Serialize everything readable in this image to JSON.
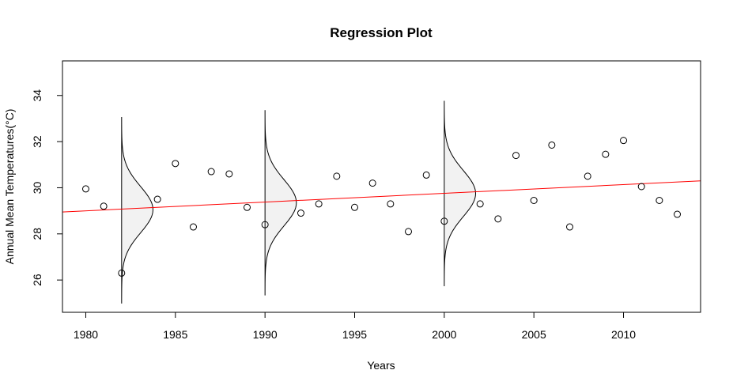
{
  "chart_data": {
    "type": "scatter",
    "title": "Regression Plot",
    "xlabel": "Years",
    "ylabel": "Annual Mean Temperatures(°C)",
    "xlim": [
      1978.7,
      2014.3
    ],
    "ylim": [
      24.6,
      35.5
    ],
    "x_ticks": [
      1980,
      1985,
      1990,
      1995,
      2000,
      2005,
      2010
    ],
    "y_ticks": [
      26,
      28,
      30,
      32,
      34
    ],
    "grid": false,
    "legend": "none",
    "points": [
      {
        "x": 1980,
        "y": 29.95
      },
      {
        "x": 1981,
        "y": 29.2
      },
      {
        "x": 1982,
        "y": 26.3
      },
      {
        "x": 1984,
        "y": 29.5
      },
      {
        "x": 1985,
        "y": 31.05
      },
      {
        "x": 1986,
        "y": 28.3
      },
      {
        "x": 1987,
        "y": 30.7
      },
      {
        "x": 1988,
        "y": 30.6
      },
      {
        "x": 1989,
        "y": 29.15
      },
      {
        "x": 1990,
        "y": 28.4
      },
      {
        "x": 1992,
        "y": 28.9
      },
      {
        "x": 1993,
        "y": 29.3
      },
      {
        "x": 1994,
        "y": 30.5
      },
      {
        "x": 1995,
        "y": 29.15
      },
      {
        "x": 1996,
        "y": 30.2
      },
      {
        "x": 1997,
        "y": 29.3
      },
      {
        "x": 1998,
        "y": 28.1
      },
      {
        "x": 1999,
        "y": 30.55
      },
      {
        "x": 2000,
        "y": 28.55
      },
      {
        "x": 2002,
        "y": 29.3
      },
      {
        "x": 2003,
        "y": 28.65
      },
      {
        "x": 2004,
        "y": 31.4
      },
      {
        "x": 2005,
        "y": 29.45
      },
      {
        "x": 2006,
        "y": 31.85
      },
      {
        "x": 2007,
        "y": 28.3
      },
      {
        "x": 2008,
        "y": 30.5
      },
      {
        "x": 2009,
        "y": 31.45
      },
      {
        "x": 2010,
        "y": 32.05
      },
      {
        "x": 2011,
        "y": 30.05
      },
      {
        "x": 2012,
        "y": 29.45
      },
      {
        "x": 2013,
        "y": 28.85
      }
    ],
    "regression_line": {
      "x": [
        1978.7,
        2014.3
      ],
      "y": [
        28.95,
        30.3
      ],
      "color": "#ff0000"
    },
    "density_curves": [
      {
        "x": 1982,
        "mean": 29.05,
        "sd": 1.0,
        "ymin": 25.0,
        "ymax": 33.05
      },
      {
        "x": 1990,
        "mean": 29.35,
        "sd": 1.0,
        "ymin": 25.35,
        "ymax": 33.35
      },
      {
        "x": 2000,
        "mean": 29.75,
        "sd": 1.0,
        "ymin": 25.75,
        "ymax": 33.75
      }
    ],
    "density_fill": "#f2f2f2",
    "point_color": "#000000"
  }
}
